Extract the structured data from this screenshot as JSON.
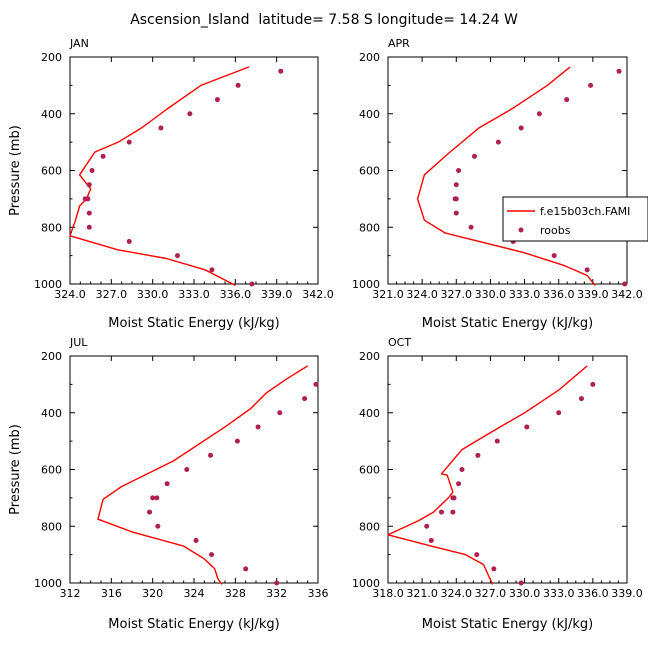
{
  "figure_title": "Ascension_Island  latitude= 7.58 S longitude= 14.24 W",
  "legend": {
    "model_label": "f.e15b03ch.FAMI",
    "obs_label": "roobs"
  },
  "colors": {
    "model": "#ff0000",
    "obs": "#b0204f",
    "axis": "#000000"
  },
  "chart_data": [
    {
      "type": "line",
      "month": "JAN",
      "xlabel": "Moist Static Energy (kJ/kg)",
      "ylabel": "Pressure (mb)",
      "xlim": [
        324.0,
        342.0
      ],
      "ylim": [
        1000,
        200
      ],
      "xticks": [
        324.0,
        327.0,
        330.0,
        333.0,
        336.0,
        339.0,
        342.0
      ],
      "xtick_labels": [
        "324.0",
        "327.0",
        "330.0",
        "333.0",
        "336.0",
        "339.0",
        "342.0"
      ],
      "yticks": [
        200,
        400,
        600,
        800,
        1000
      ],
      "ytick_labels": [
        "200",
        "400",
        "600",
        "800",
        "1000"
      ],
      "series": [
        {
          "name": "f.e15b03ch.FAMI",
          "kind": "line",
          "x": [
            337.0,
            333.5,
            331.0,
            329.2,
            327.5,
            325.8,
            324.7,
            325.5,
            325.2,
            324.7,
            324.4,
            324.0,
            327.5,
            331.0,
            333.8,
            336.0
          ],
          "y": [
            235,
            300,
            385,
            450,
            500,
            535,
            615,
            665,
            700,
            725,
            775,
            830,
            880,
            910,
            950,
            1005
          ]
        },
        {
          "name": "roobs",
          "kind": "scatter",
          "x": [
            339.3,
            336.2,
            334.7,
            332.7,
            330.6,
            328.3,
            326.4,
            325.6,
            325.4,
            325.3,
            325.1,
            325.4,
            325.4,
            328.3,
            331.8,
            334.3,
            337.2
          ],
          "y": [
            250,
            300,
            350,
            400,
            450,
            500,
            550,
            600,
            650,
            700,
            700,
            750,
            800,
            850,
            900,
            950,
            1000
          ]
        }
      ]
    },
    {
      "type": "line",
      "month": "APR",
      "xlabel": "Moist Static Energy (kJ/kg)",
      "ylabel": "Pressure (mb)",
      "xlim": [
        321.0,
        342.0
      ],
      "ylim": [
        1000,
        200
      ],
      "xticks": [
        321.0,
        324.0,
        327.0,
        330.0,
        333.0,
        336.0,
        339.0,
        342.0
      ],
      "xtick_labels": [
        "321.0",
        "324.0",
        "327.0",
        "330.0",
        "333.0",
        "336.0",
        "339.0",
        "342.0"
      ],
      "yticks": [
        200,
        400,
        600,
        800,
        1000
      ],
      "ytick_labels": [
        "200",
        "400",
        "600",
        "800",
        "1000"
      ],
      "series": [
        {
          "name": "f.e15b03ch.FAMI",
          "kind": "line",
          "x": [
            337.0,
            335.0,
            332.0,
            329.0,
            326.3,
            324.2,
            323.6,
            324.2,
            326.0,
            329.0,
            333.0,
            336.5,
            338.5,
            339.2
          ],
          "y": [
            235,
            300,
            380,
            450,
            540,
            615,
            700,
            775,
            820,
            850,
            890,
            935,
            970,
            1005
          ]
        },
        {
          "name": "roobs",
          "kind": "scatter",
          "x": [
            341.3,
            338.8,
            336.7,
            334.3,
            332.7,
            330.7,
            328.6,
            327.2,
            327.0,
            326.9,
            327.0,
            327.0,
            328.3,
            332.0,
            335.6,
            338.5,
            341.8
          ],
          "y": [
            250,
            300,
            350,
            400,
            450,
            500,
            550,
            600,
            650,
            700,
            700,
            750,
            800,
            850,
            900,
            950,
            1000
          ]
        }
      ]
    },
    {
      "type": "line",
      "month": "JUL",
      "xlabel": "Moist Static Energy (kJ/kg)",
      "ylabel": "Pressure (mb)",
      "xlim": [
        312,
        336
      ],
      "ylim": [
        1000,
        200
      ],
      "xticks": [
        312,
        316,
        320,
        324,
        328,
        332,
        336
      ],
      "xtick_labels": [
        "312",
        "316",
        "320",
        "324",
        "328",
        "332",
        "336"
      ],
      "yticks": [
        200,
        400,
        600,
        800,
        1000
      ],
      "ytick_labels": [
        "200",
        "400",
        "600",
        "800",
        "1000"
      ],
      "series": [
        {
          "name": "f.e15b03ch.FAMI",
          "kind": "line",
          "x": [
            335.0,
            333.0,
            331.0,
            329.5,
            327.0,
            322.0,
            317.0,
            315.2,
            314.7,
            318.0,
            323.0,
            325.0,
            326.0,
            326.3,
            326.7
          ],
          "y": [
            235,
            280,
            330,
            385,
            450,
            570,
            660,
            705,
            775,
            820,
            870,
            915,
            950,
            985,
            1005
          ]
        },
        {
          "name": "roobs",
          "kind": "scatter",
          "x": [
            335.8,
            334.7,
            332.3,
            330.2,
            328.2,
            325.6,
            323.3,
            321.4,
            320.4,
            320.0,
            319.7,
            320.5,
            324.2,
            325.7,
            329.0,
            332.0
          ],
          "y": [
            300,
            350,
            400,
            450,
            500,
            550,
            600,
            650,
            700,
            700,
            750,
            800,
            850,
            900,
            950,
            1000
          ]
        }
      ]
    },
    {
      "type": "line",
      "month": "OCT",
      "xlabel": "Moist Static Energy (kJ/kg)",
      "ylabel": "Pressure (mb)",
      "xlim": [
        318.0,
        339.0
      ],
      "ylim": [
        1000,
        200
      ],
      "xticks": [
        318.0,
        321.0,
        324.0,
        327.0,
        330.0,
        333.0,
        336.0,
        339.0
      ],
      "xtick_labels": [
        "318.0",
        "321.0",
        "324.0",
        "327.0",
        "330.0",
        "333.0",
        "336.0",
        "339.0"
      ],
      "yticks": [
        200,
        400,
        600,
        800,
        1000
      ],
      "ytick_labels": [
        "200",
        "400",
        "600",
        "800",
        "1000"
      ],
      "series": [
        {
          "name": "f.e15b03ch.FAMI",
          "kind": "line",
          "x": [
            335.5,
            333.0,
            330.0,
            327.0,
            324.5,
            322.7,
            323.2,
            323.7,
            323.3,
            322.0,
            320.7,
            318.0,
            321.8,
            324.8,
            326.4,
            326.9,
            327.2
          ],
          "y": [
            235,
            320,
            400,
            470,
            530,
            615,
            620,
            680,
            700,
            750,
            780,
            830,
            870,
            900,
            935,
            980,
            1005
          ]
        },
        {
          "name": "roobs",
          "kind": "scatter",
          "x": [
            336.0,
            335.0,
            333.0,
            330.2,
            327.6,
            325.9,
            324.5,
            324.2,
            323.8,
            323.7,
            323.7,
            322.7,
            321.4,
            321.8,
            325.8,
            327.3,
            329.7
          ],
          "y": [
            300,
            350,
            400,
            450,
            500,
            550,
            600,
            650,
            700,
            700,
            750,
            750,
            800,
            850,
            900,
            950,
            1000
          ]
        }
      ]
    }
  ]
}
